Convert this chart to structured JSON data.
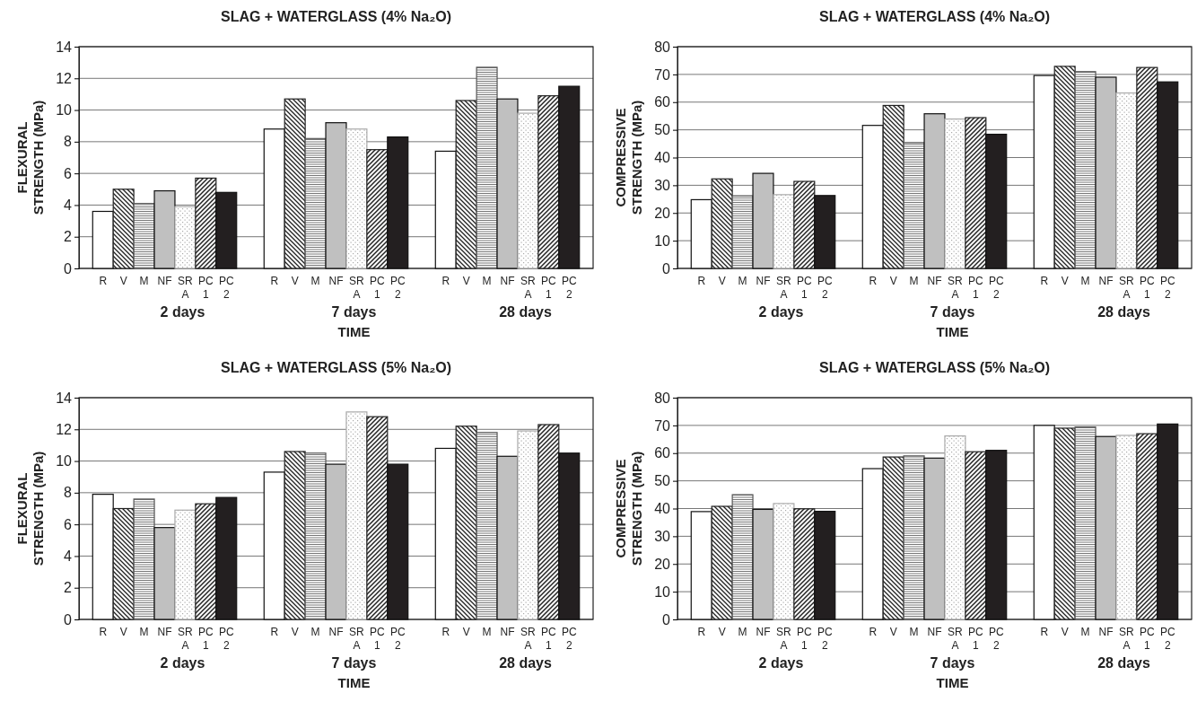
{
  "chart_data": [
    {
      "type": "bar",
      "title": "SLAG + WATERGLASS (4% Na₂O)",
      "xlabel": "TIME",
      "ylabel": "FLEXURAL STRENGTH (MPa)",
      "categories": [
        "2 days",
        "7 days",
        "28 days"
      ],
      "ylim": [
        0,
        14
      ],
      "yticks": [
        0,
        2,
        4,
        6,
        8,
        10,
        12,
        14
      ],
      "grid": "y",
      "series": [
        {
          "name": "R",
          "color": "#ffffff",
          "values": [
            3.6,
            8.8,
            7.4
          ]
        },
        {
          "name": "V",
          "color": "#222222",
          "values": [
            5.0,
            10.7,
            10.6
          ]
        },
        {
          "name": "M",
          "color": "#555555",
          "values": [
            4.1,
            8.2,
            12.7
          ]
        },
        {
          "name": "NF",
          "color": "#c0c0c0",
          "values": [
            4.9,
            9.2,
            10.7
          ]
        },
        {
          "name": "SR A",
          "color": "#aaaaaa",
          "values": [
            3.9,
            8.8,
            9.8
          ]
        },
        {
          "name": "PC 1",
          "color": "#222222",
          "values": [
            5.7,
            7.5,
            10.9
          ]
        },
        {
          "name": "PC 2",
          "color": "#231f20",
          "values": [
            4.8,
            8.3,
            11.5
          ]
        }
      ]
    },
    {
      "type": "bar",
      "title": "SLAG + WATERGLASS (4% Na₂O)",
      "xlabel": "TIME",
      "ylabel": "COMPRESSIVE STRENGTH (MPa)",
      "categories": [
        "2 days",
        "7 days",
        "28 days"
      ],
      "ylim": [
        0,
        80
      ],
      "yticks": [
        0,
        10,
        20,
        30,
        40,
        50,
        60,
        70,
        80
      ],
      "grid": "y",
      "series": [
        {
          "name": "R",
          "color": "#ffffff",
          "values": [
            24.8,
            51.6,
            69.6
          ]
        },
        {
          "name": "V",
          "color": "#222222",
          "values": [
            32.3,
            58.8,
            72.9
          ]
        },
        {
          "name": "M",
          "color": "#555555",
          "values": [
            26.2,
            45.4,
            71.0
          ]
        },
        {
          "name": "NF",
          "color": "#c0c0c0",
          "values": [
            34.3,
            55.8,
            69.0
          ]
        },
        {
          "name": "SR A",
          "color": "#aaaaaa",
          "values": [
            26.6,
            53.9,
            63.3
          ]
        },
        {
          "name": "PC 1",
          "color": "#222222",
          "values": [
            31.4,
            54.4,
            72.5
          ]
        },
        {
          "name": "PC 2",
          "color": "#231f20",
          "values": [
            26.3,
            48.4,
            67.3
          ]
        }
      ]
    },
    {
      "type": "bar",
      "title": "SLAG + WATERGLASS (5% Na₂O)",
      "xlabel": "TIME",
      "ylabel": "FLEXURAL STRENGTH (MPa)",
      "categories": [
        "2 days",
        "7 days",
        "28 days"
      ],
      "ylim": [
        0,
        14
      ],
      "yticks": [
        0,
        2,
        4,
        6,
        8,
        10,
        12,
        14
      ],
      "grid": "y",
      "series": [
        {
          "name": "R",
          "color": "#ffffff",
          "values": [
            7.9,
            9.3,
            10.8
          ]
        },
        {
          "name": "V",
          "color": "#222222",
          "values": [
            7.0,
            10.6,
            12.2
          ]
        },
        {
          "name": "M",
          "color": "#555555",
          "values": [
            7.6,
            10.5,
            11.8
          ]
        },
        {
          "name": "NF",
          "color": "#c0c0c0",
          "values": [
            5.8,
            9.8,
            10.3
          ]
        },
        {
          "name": "SR A",
          "color": "#aaaaaa",
          "values": [
            6.9,
            13.1,
            11.9
          ]
        },
        {
          "name": "PC 1",
          "color": "#222222",
          "values": [
            7.3,
            12.8,
            12.3
          ]
        },
        {
          "name": "PC 2",
          "color": "#231f20",
          "values": [
            7.7,
            9.8,
            10.5
          ]
        }
      ]
    },
    {
      "type": "bar",
      "title": "SLAG + WATERGLASS (5% Na₂O)",
      "xlabel": "TIME",
      "ylabel": "COMPRESSIVE STRENGTH (MPa)",
      "categories": [
        "2 days",
        "7 days",
        "28 days"
      ],
      "ylim": [
        0,
        80
      ],
      "yticks": [
        0,
        10,
        20,
        30,
        40,
        50,
        60,
        70,
        80
      ],
      "grid": "y",
      "series": [
        {
          "name": "R",
          "color": "#ffffff",
          "values": [
            38.9,
            54.4,
            70.0
          ]
        },
        {
          "name": "V",
          "color": "#222222",
          "values": [
            40.8,
            58.6,
            69.0
          ]
        },
        {
          "name": "M",
          "color": "#555555",
          "values": [
            45.0,
            59.0,
            69.4
          ]
        },
        {
          "name": "NF",
          "color": "#c0c0c0",
          "values": [
            39.7,
            58.2,
            66.0
          ]
        },
        {
          "name": "SR A",
          "color": "#aaaaaa",
          "values": [
            41.8,
            66.2,
            66.4
          ]
        },
        {
          "name": "PC 1",
          "color": "#222222",
          "values": [
            39.9,
            60.5,
            67.0
          ]
        },
        {
          "name": "PC 2",
          "color": "#231f20",
          "values": [
            39.0,
            61.0,
            70.5
          ]
        }
      ]
    }
  ]
}
